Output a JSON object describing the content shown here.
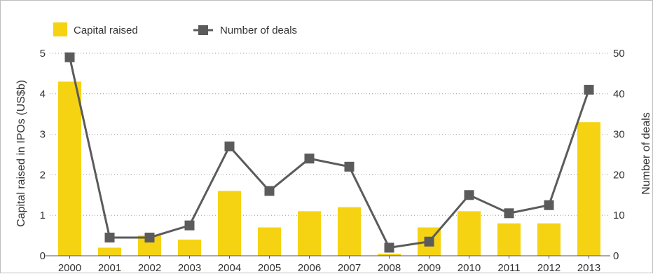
{
  "chart_data": {
    "type": "bar",
    "categories": [
      "2000",
      "2001",
      "2002",
      "2003",
      "2004",
      "2005",
      "2006",
      "2007",
      "2008",
      "2009",
      "2010",
      "2011",
      "2012",
      "2013"
    ],
    "series": [
      {
        "name": "Capital raised",
        "type": "bar",
        "axis": "left",
        "color": "#f5d312",
        "values": [
          4.3,
          0.2,
          0.5,
          0.4,
          1.6,
          0.7,
          1.1,
          1.2,
          0.05,
          0.7,
          1.1,
          0.8,
          0.8,
          3.3
        ]
      },
      {
        "name": "Number of deals",
        "type": "line",
        "axis": "right",
        "color": "#5b5b5b",
        "values": [
          49,
          4.5,
          4.5,
          7.5,
          27,
          16,
          24,
          22,
          2,
          3.5,
          15,
          10.5,
          12.5,
          41
        ]
      }
    ],
    "ylabel": "Capital raised in IPOs (US$b)",
    "y2label": "Number of deals",
    "ylim": [
      0,
      5
    ],
    "y2lim": [
      0,
      50
    ],
    "yticks": [
      "0",
      "1",
      "2",
      "3",
      "4",
      "5"
    ],
    "y2ticks": [
      "0",
      "10",
      "20",
      "30",
      "40",
      "50"
    ],
    "legend_position": "top-left",
    "grid": "horizontal-dotted"
  }
}
